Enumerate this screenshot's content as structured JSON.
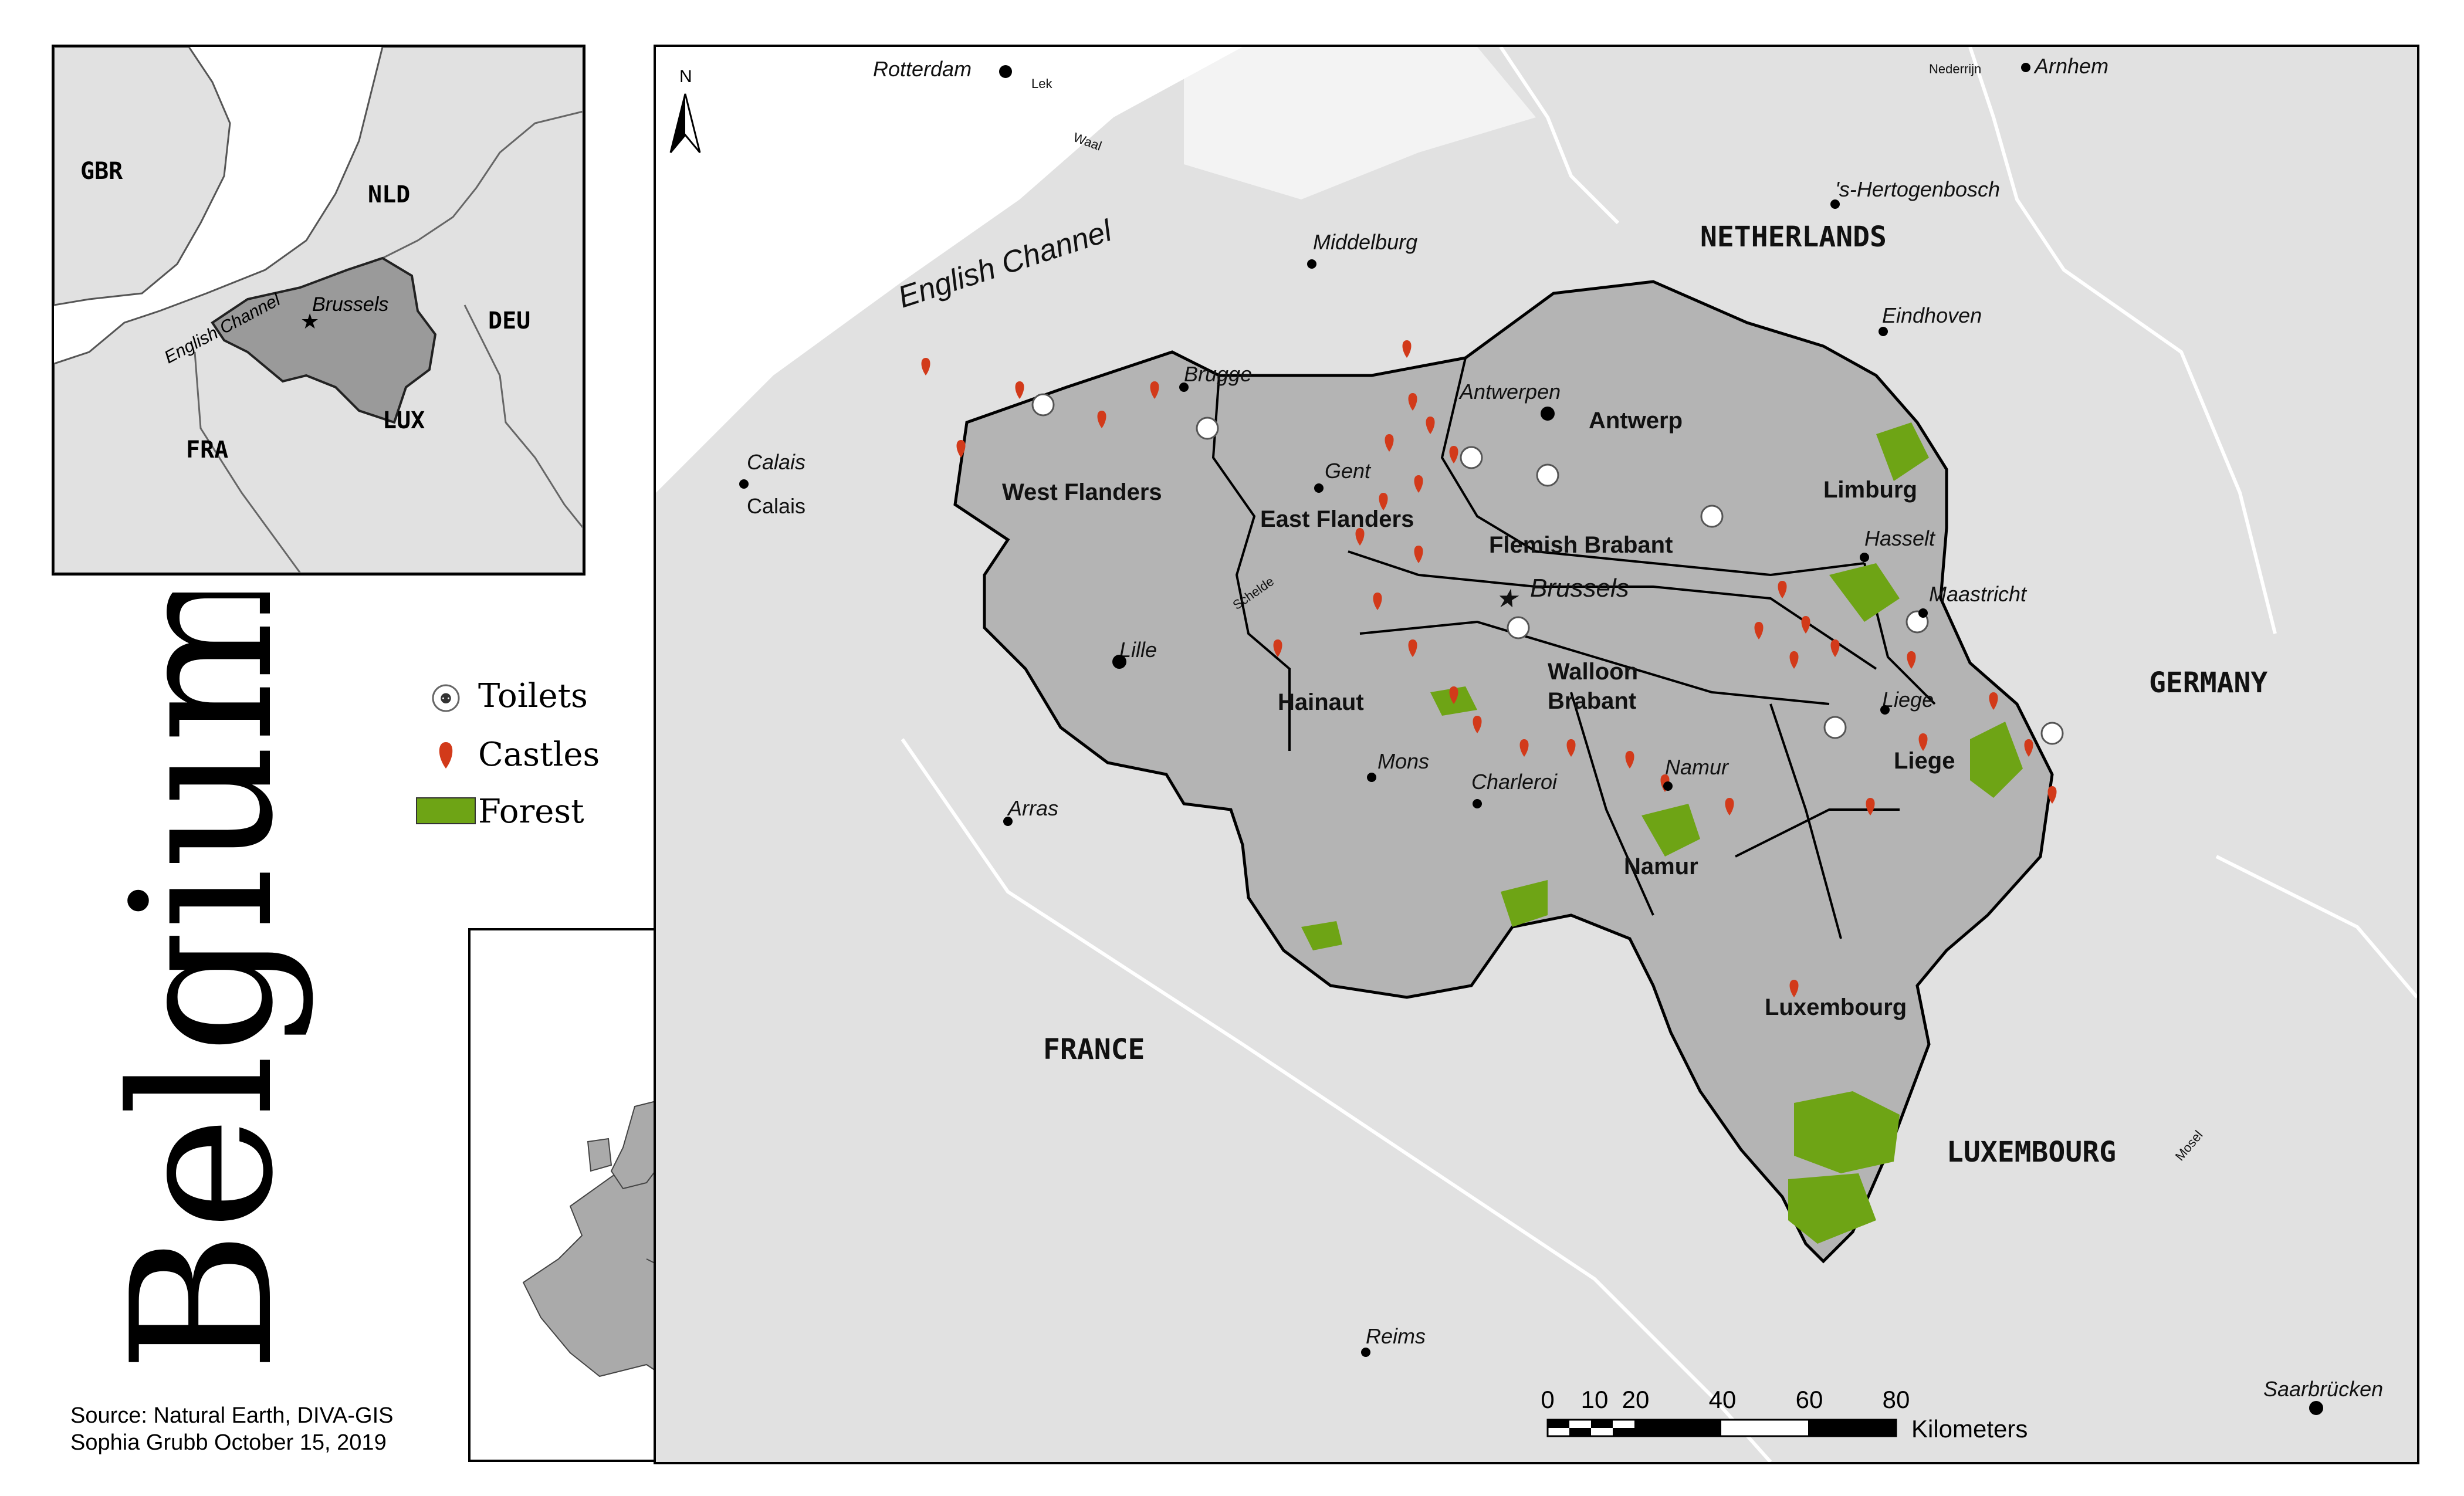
{
  "title": "Belgium",
  "legend": [
    {
      "label": "Toilets",
      "icon": "toilet-icon"
    },
    {
      "label": "Castles",
      "icon": "castle-marker-icon",
      "color": "#d23a1a"
    },
    {
      "label": "Forest",
      "icon": "forest-swatch",
      "color": "#6ea415"
    }
  ],
  "credits": [
    "Source: Natural Earth, DIVA-GIS",
    "Sophia Grubb October 15, 2019"
  ],
  "colors": {
    "belgium": "#b4b4b4",
    "land": "#e1e1e1",
    "forest": "#6ea415",
    "castle": "#d23a1a",
    "inset_country": "#aaaaaa"
  },
  "inset_top": {
    "countries": [
      "GBR",
      "NLD",
      "DEU",
      "FRA",
      "LUX"
    ],
    "capital": "Brussels",
    "water": "English Channel"
  },
  "main_map": {
    "north_label": "N",
    "countries": [
      "NETHERLANDS",
      "GERMANY",
      "FRANCE",
      "LUXEMBOURG"
    ],
    "water": "English Channel",
    "provinces": [
      "West Flanders",
      "East Flanders",
      "Antwerp",
      "Limburg",
      "Flemish Brabant",
      "Walloon",
      "Brabant",
      "Hainaut",
      "Liege",
      "Namur",
      "Luxembourg"
    ],
    "cities": [
      "Rotterdam",
      "Arnhem",
      "'s-Hertogenbosch",
      "Middelburg",
      "Eindhoven",
      "Brugge",
      "Antwerpen",
      "Gent",
      "Hasselt",
      "Maastricht",
      "Brussels",
      "Calais",
      "Calais",
      "Lille",
      "Liege",
      "Mons",
      "Charleroi",
      "Namur",
      "Arras",
      "Reims",
      "Saarbrücken"
    ],
    "rivers": [
      "Lek",
      "Nederrijn",
      "Waal",
      "Schelde",
      "Mosel"
    ],
    "scale": {
      "ticks": [
        "0",
        "10",
        "20",
        "40",
        "60",
        "80"
      ],
      "unit": "Kilometers"
    }
  }
}
